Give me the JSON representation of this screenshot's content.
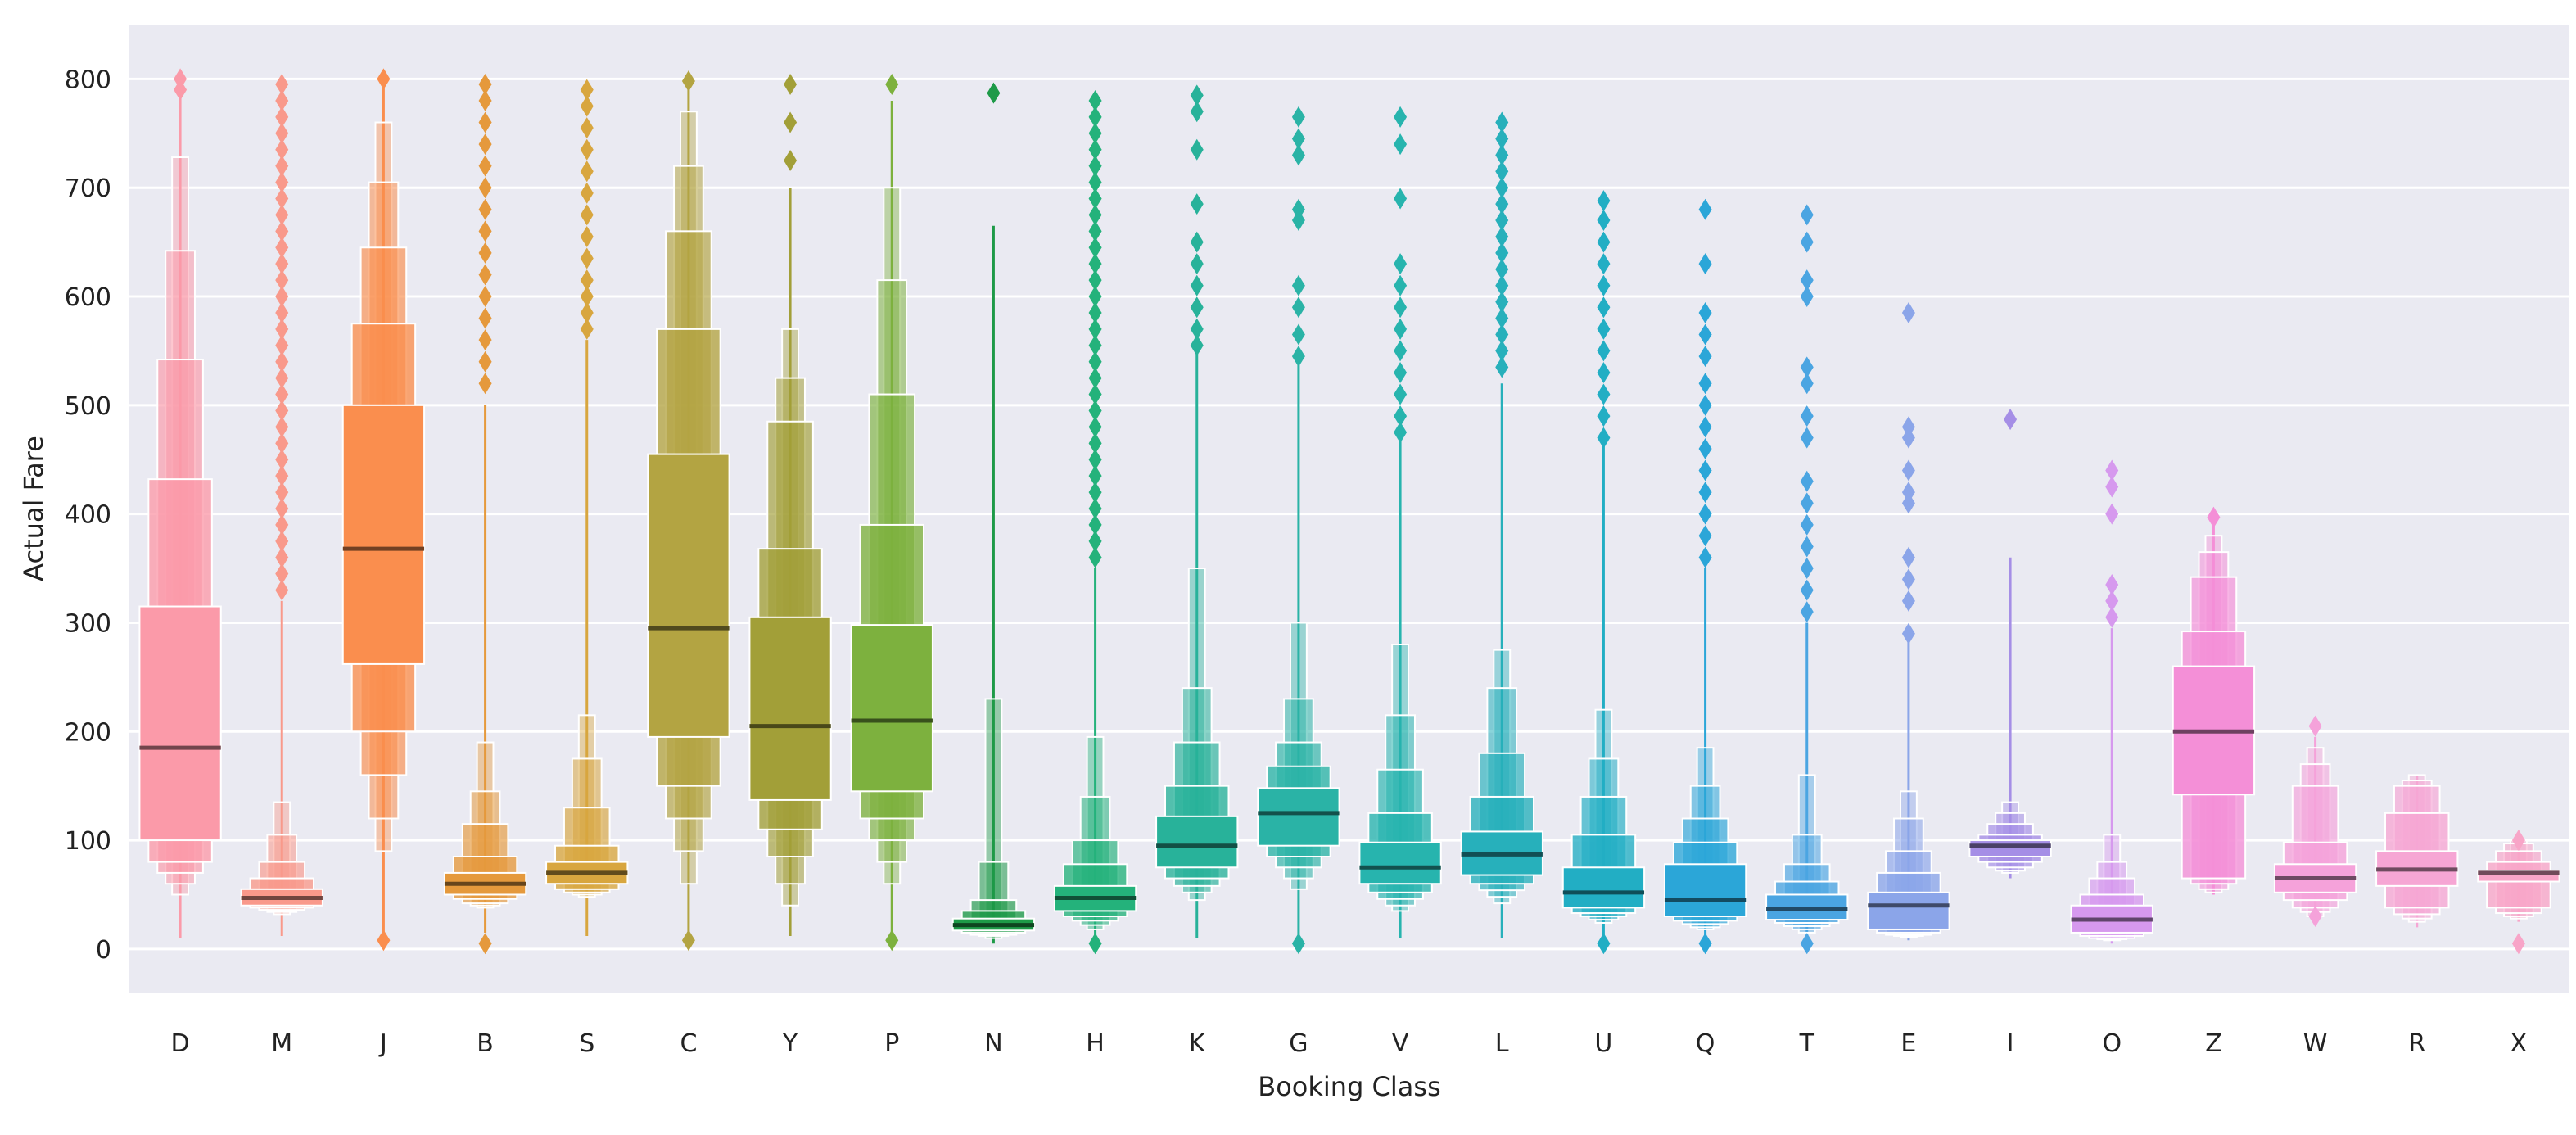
{
  "chart_data": {
    "type": "boxen",
    "title": "",
    "xlabel": "Booking Class",
    "ylabel": "Actual Fare",
    "ylim": [
      -40,
      850
    ],
    "yticks": [
      0,
      100,
      200,
      300,
      400,
      500,
      600,
      700,
      800
    ],
    "grid": true,
    "legend": "none",
    "categories": [
      {
        "label": "D",
        "median": 185,
        "color": "#fb9aa9",
        "boxes": [
          [
            100,
            315
          ],
          [
            80,
            432
          ],
          [
            70,
            542
          ],
          [
            60,
            642
          ],
          [
            50,
            728
          ]
        ],
        "whisker": [
          10,
          800
        ],
        "outliers": [
          800,
          790
        ]
      },
      {
        "label": "M",
        "median": 47,
        "color": "#f9998b",
        "boxes": [
          [
            40,
            55
          ],
          [
            38,
            65
          ],
          [
            36,
            80
          ],
          [
            34,
            105
          ],
          [
            32,
            135
          ]
        ],
        "whisker": [
          12,
          320
        ],
        "outliers": [
          795,
          780,
          765,
          750,
          735,
          720,
          705,
          690,
          675,
          660,
          645,
          630,
          615,
          600,
          585,
          570,
          555,
          540,
          525,
          510,
          495,
          480,
          465,
          450,
          435,
          420,
          405,
          390,
          375,
          360,
          345,
          330
        ]
      },
      {
        "label": "J",
        "median": 368,
        "color": "#fa8e4e",
        "boxes": [
          [
            262,
            500
          ],
          [
            200,
            575
          ],
          [
            160,
            645
          ],
          [
            120,
            705
          ],
          [
            90,
            760
          ]
        ],
        "whisker": [
          10,
          795
        ],
        "outliers": [
          800,
          8
        ]
      },
      {
        "label": "B",
        "median": 60,
        "color": "#e5993c",
        "boxes": [
          [
            50,
            70
          ],
          [
            46,
            85
          ],
          [
            42,
            115
          ],
          [
            40,
            145
          ],
          [
            38,
            190
          ]
        ],
        "whisker": [
          15,
          500
        ],
        "outliers": [
          795,
          780,
          760,
          740,
          720,
          700,
          680,
          660,
          640,
          620,
          600,
          580,
          560,
          540,
          520,
          5
        ]
      },
      {
        "label": "S",
        "median": 70,
        "color": "#d8a63f",
        "boxes": [
          [
            60,
            80
          ],
          [
            55,
            95
          ],
          [
            52,
            130
          ],
          [
            50,
            175
          ],
          [
            48,
            215
          ]
        ],
        "whisker": [
          12,
          560
        ],
        "outliers": [
          790,
          775,
          755,
          735,
          715,
          695,
          675,
          655,
          635,
          615,
          600,
          585,
          570
        ]
      },
      {
        "label": "C",
        "median": 295,
        "color": "#b3a442",
        "boxes": [
          [
            195,
            455
          ],
          [
            150,
            570
          ],
          [
            120,
            660
          ],
          [
            90,
            720
          ],
          [
            60,
            770
          ]
        ],
        "whisker": [
          10,
          790
        ],
        "outliers": [
          798,
          8
        ]
      },
      {
        "label": "Y",
        "median": 205,
        "color": "#a29f38",
        "boxes": [
          [
            137,
            305
          ],
          [
            110,
            368
          ],
          [
            85,
            485
          ],
          [
            60,
            525
          ],
          [
            40,
            570
          ]
        ],
        "whisker": [
          12,
          700
        ],
        "outliers": [
          795,
          760,
          725
        ]
      },
      {
        "label": "P",
        "median": 210,
        "color": "#7db13e",
        "boxes": [
          [
            145,
            298
          ],
          [
            120,
            390
          ],
          [
            100,
            510
          ],
          [
            80,
            615
          ],
          [
            60,
            700
          ]
        ],
        "whisker": [
          10,
          780
        ],
        "outliers": [
          795,
          8
        ]
      },
      {
        "label": "N",
        "median": 22,
        "color": "#1e9a48",
        "boxes": [
          [
            17,
            28
          ],
          [
            15,
            35
          ],
          [
            13,
            45
          ],
          [
            12,
            80
          ],
          [
            10,
            230
          ]
        ],
        "whisker": [
          5,
          665
        ],
        "outliers": [
          787
        ]
      },
      {
        "label": "H",
        "median": 47,
        "color": "#24b27b",
        "boxes": [
          [
            35,
            58
          ],
          [
            30,
            78
          ],
          [
            26,
            100
          ],
          [
            22,
            140
          ],
          [
            18,
            195
          ]
        ],
        "whisker": [
          10,
          350
        ],
        "outliers": [
          780,
          765,
          750,
          735,
          720,
          705,
          690,
          675,
          660,
          645,
          630,
          615,
          600,
          585,
          570,
          555,
          540,
          525,
          510,
          495,
          480,
          465,
          450,
          435,
          420,
          405,
          390,
          375,
          360,
          5
        ]
      },
      {
        "label": "K",
        "median": 95,
        "color": "#28b29a",
        "boxes": [
          [
            75,
            122
          ],
          [
            65,
            150
          ],
          [
            58,
            190
          ],
          [
            52,
            240
          ],
          [
            45,
            350
          ]
        ],
        "whisker": [
          10,
          550
        ],
        "outliers": [
          785,
          770,
          735,
          685,
          650,
          630,
          610,
          590,
          570,
          555
        ]
      },
      {
        "label": "G",
        "median": 125,
        "color": "#2ab3a6",
        "boxes": [
          [
            95,
            148
          ],
          [
            85,
            168
          ],
          [
            75,
            190
          ],
          [
            65,
            230
          ],
          [
            55,
            300
          ]
        ],
        "whisker": [
          10,
          540
        ],
        "outliers": [
          765,
          745,
          730,
          680,
          670,
          610,
          590,
          565,
          545,
          5
        ]
      },
      {
        "label": "V",
        "median": 75,
        "color": "#27b4ae",
        "boxes": [
          [
            60,
            98
          ],
          [
            52,
            125
          ],
          [
            46,
            165
          ],
          [
            40,
            215
          ],
          [
            35,
            280
          ]
        ],
        "whisker": [
          10,
          470
        ],
        "outliers": [
          765,
          740,
          690,
          630,
          610,
          590,
          570,
          550,
          530,
          510,
          490,
          475
        ]
      },
      {
        "label": "L",
        "median": 87,
        "color": "#27b0bb",
        "boxes": [
          [
            68,
            108
          ],
          [
            60,
            140
          ],
          [
            54,
            180
          ],
          [
            48,
            240
          ],
          [
            42,
            275
          ]
        ],
        "whisker": [
          10,
          520
        ],
        "outliers": [
          760,
          745,
          730,
          715,
          700,
          685,
          670,
          655,
          640,
          625,
          610,
          595,
          580,
          565,
          550,
          535
        ]
      },
      {
        "label": "U",
        "median": 52,
        "color": "#22aec4",
        "boxes": [
          [
            38,
            75
          ],
          [
            33,
            105
          ],
          [
            30,
            140
          ],
          [
            27,
            175
          ],
          [
            24,
            220
          ]
        ],
        "whisker": [
          10,
          470
        ],
        "outliers": [
          688,
          670,
          650,
          630,
          610,
          590,
          570,
          550,
          530,
          510,
          490,
          470,
          5
        ]
      },
      {
        "label": "Q",
        "median": 45,
        "color": "#2ba6d8",
        "boxes": [
          [
            30,
            78
          ],
          [
            26,
            98
          ],
          [
            23,
            120
          ],
          [
            20,
            150
          ],
          [
            18,
            185
          ]
        ],
        "whisker": [
          8,
          350
        ],
        "outliers": [
          680,
          630,
          585,
          565,
          545,
          520,
          500,
          480,
          460,
          440,
          420,
          400,
          380,
          360,
          5
        ]
      },
      {
        "label": "T",
        "median": 37,
        "color": "#4ba5e2",
        "boxes": [
          [
            27,
            50
          ],
          [
            24,
            62
          ],
          [
            21,
            78
          ],
          [
            18,
            105
          ],
          [
            15,
            160
          ]
        ],
        "whisker": [
          8,
          300
        ],
        "outliers": [
          675,
          650,
          615,
          600,
          535,
          520,
          490,
          470,
          430,
          410,
          390,
          370,
          350,
          330,
          310,
          5
        ]
      },
      {
        "label": "E",
        "median": 40,
        "color": "#8ba5e9",
        "boxes": [
          [
            18,
            52
          ],
          [
            15,
            70
          ],
          [
            13,
            90
          ],
          [
            12,
            120
          ],
          [
            11,
            145
          ]
        ],
        "whisker": [
          8,
          285
        ],
        "outliers": [
          585,
          480,
          470,
          440,
          420,
          410,
          360,
          340,
          320,
          290
        ]
      },
      {
        "label": "I",
        "median": 95,
        "color": "#a58ee6",
        "boxes": [
          [
            85,
            100
          ],
          [
            80,
            105
          ],
          [
            75,
            115
          ],
          [
            72,
            125
          ],
          [
            70,
            135
          ]
        ],
        "whisker": [
          65,
          360
        ],
        "outliers": [
          487
        ]
      },
      {
        "label": "O",
        "median": 27,
        "color": "#d699ee",
        "boxes": [
          [
            15,
            40
          ],
          [
            12,
            50
          ],
          [
            10,
            65
          ],
          [
            9,
            80
          ],
          [
            8,
            105
          ]
        ],
        "whisker": [
          5,
          295
        ],
        "outliers": [
          440,
          425,
          400,
          335,
          320,
          305
        ]
      },
      {
        "label": "Z",
        "median": 200,
        "color": "#f48fd7",
        "boxes": [
          [
            142,
            260
          ],
          [
            65,
            292
          ],
          [
            60,
            342
          ],
          [
            55,
            365
          ],
          [
            52,
            380
          ]
        ],
        "whisker": [
          50,
          390
        ],
        "outliers": [
          397
        ]
      },
      {
        "label": "W",
        "median": 65,
        "color": "#f5a2da",
        "boxes": [
          [
            52,
            78
          ],
          [
            45,
            98
          ],
          [
            38,
            150
          ],
          [
            34,
            170
          ],
          [
            30,
            185
          ]
        ],
        "whisker": [
          25,
          195
        ],
        "outliers": [
          205,
          30
        ]
      },
      {
        "label": "R",
        "median": 73,
        "color": "#f6a6d4",
        "boxes": [
          [
            58,
            90
          ],
          [
            38,
            125
          ],
          [
            32,
            150
          ],
          [
            28,
            155
          ],
          [
            25,
            160
          ]
        ],
        "whisker": [
          20,
          160
        ],
        "outliers": []
      },
      {
        "label": "X",
        "median": 70,
        "color": "#f8a5c8",
        "boxes": [
          [
            62,
            72
          ],
          [
            38,
            80
          ],
          [
            33,
            90
          ],
          [
            30,
            97
          ],
          [
            28,
            100
          ]
        ],
        "whisker": [
          25,
          100
        ],
        "outliers": [
          100,
          5
        ]
      }
    ]
  }
}
